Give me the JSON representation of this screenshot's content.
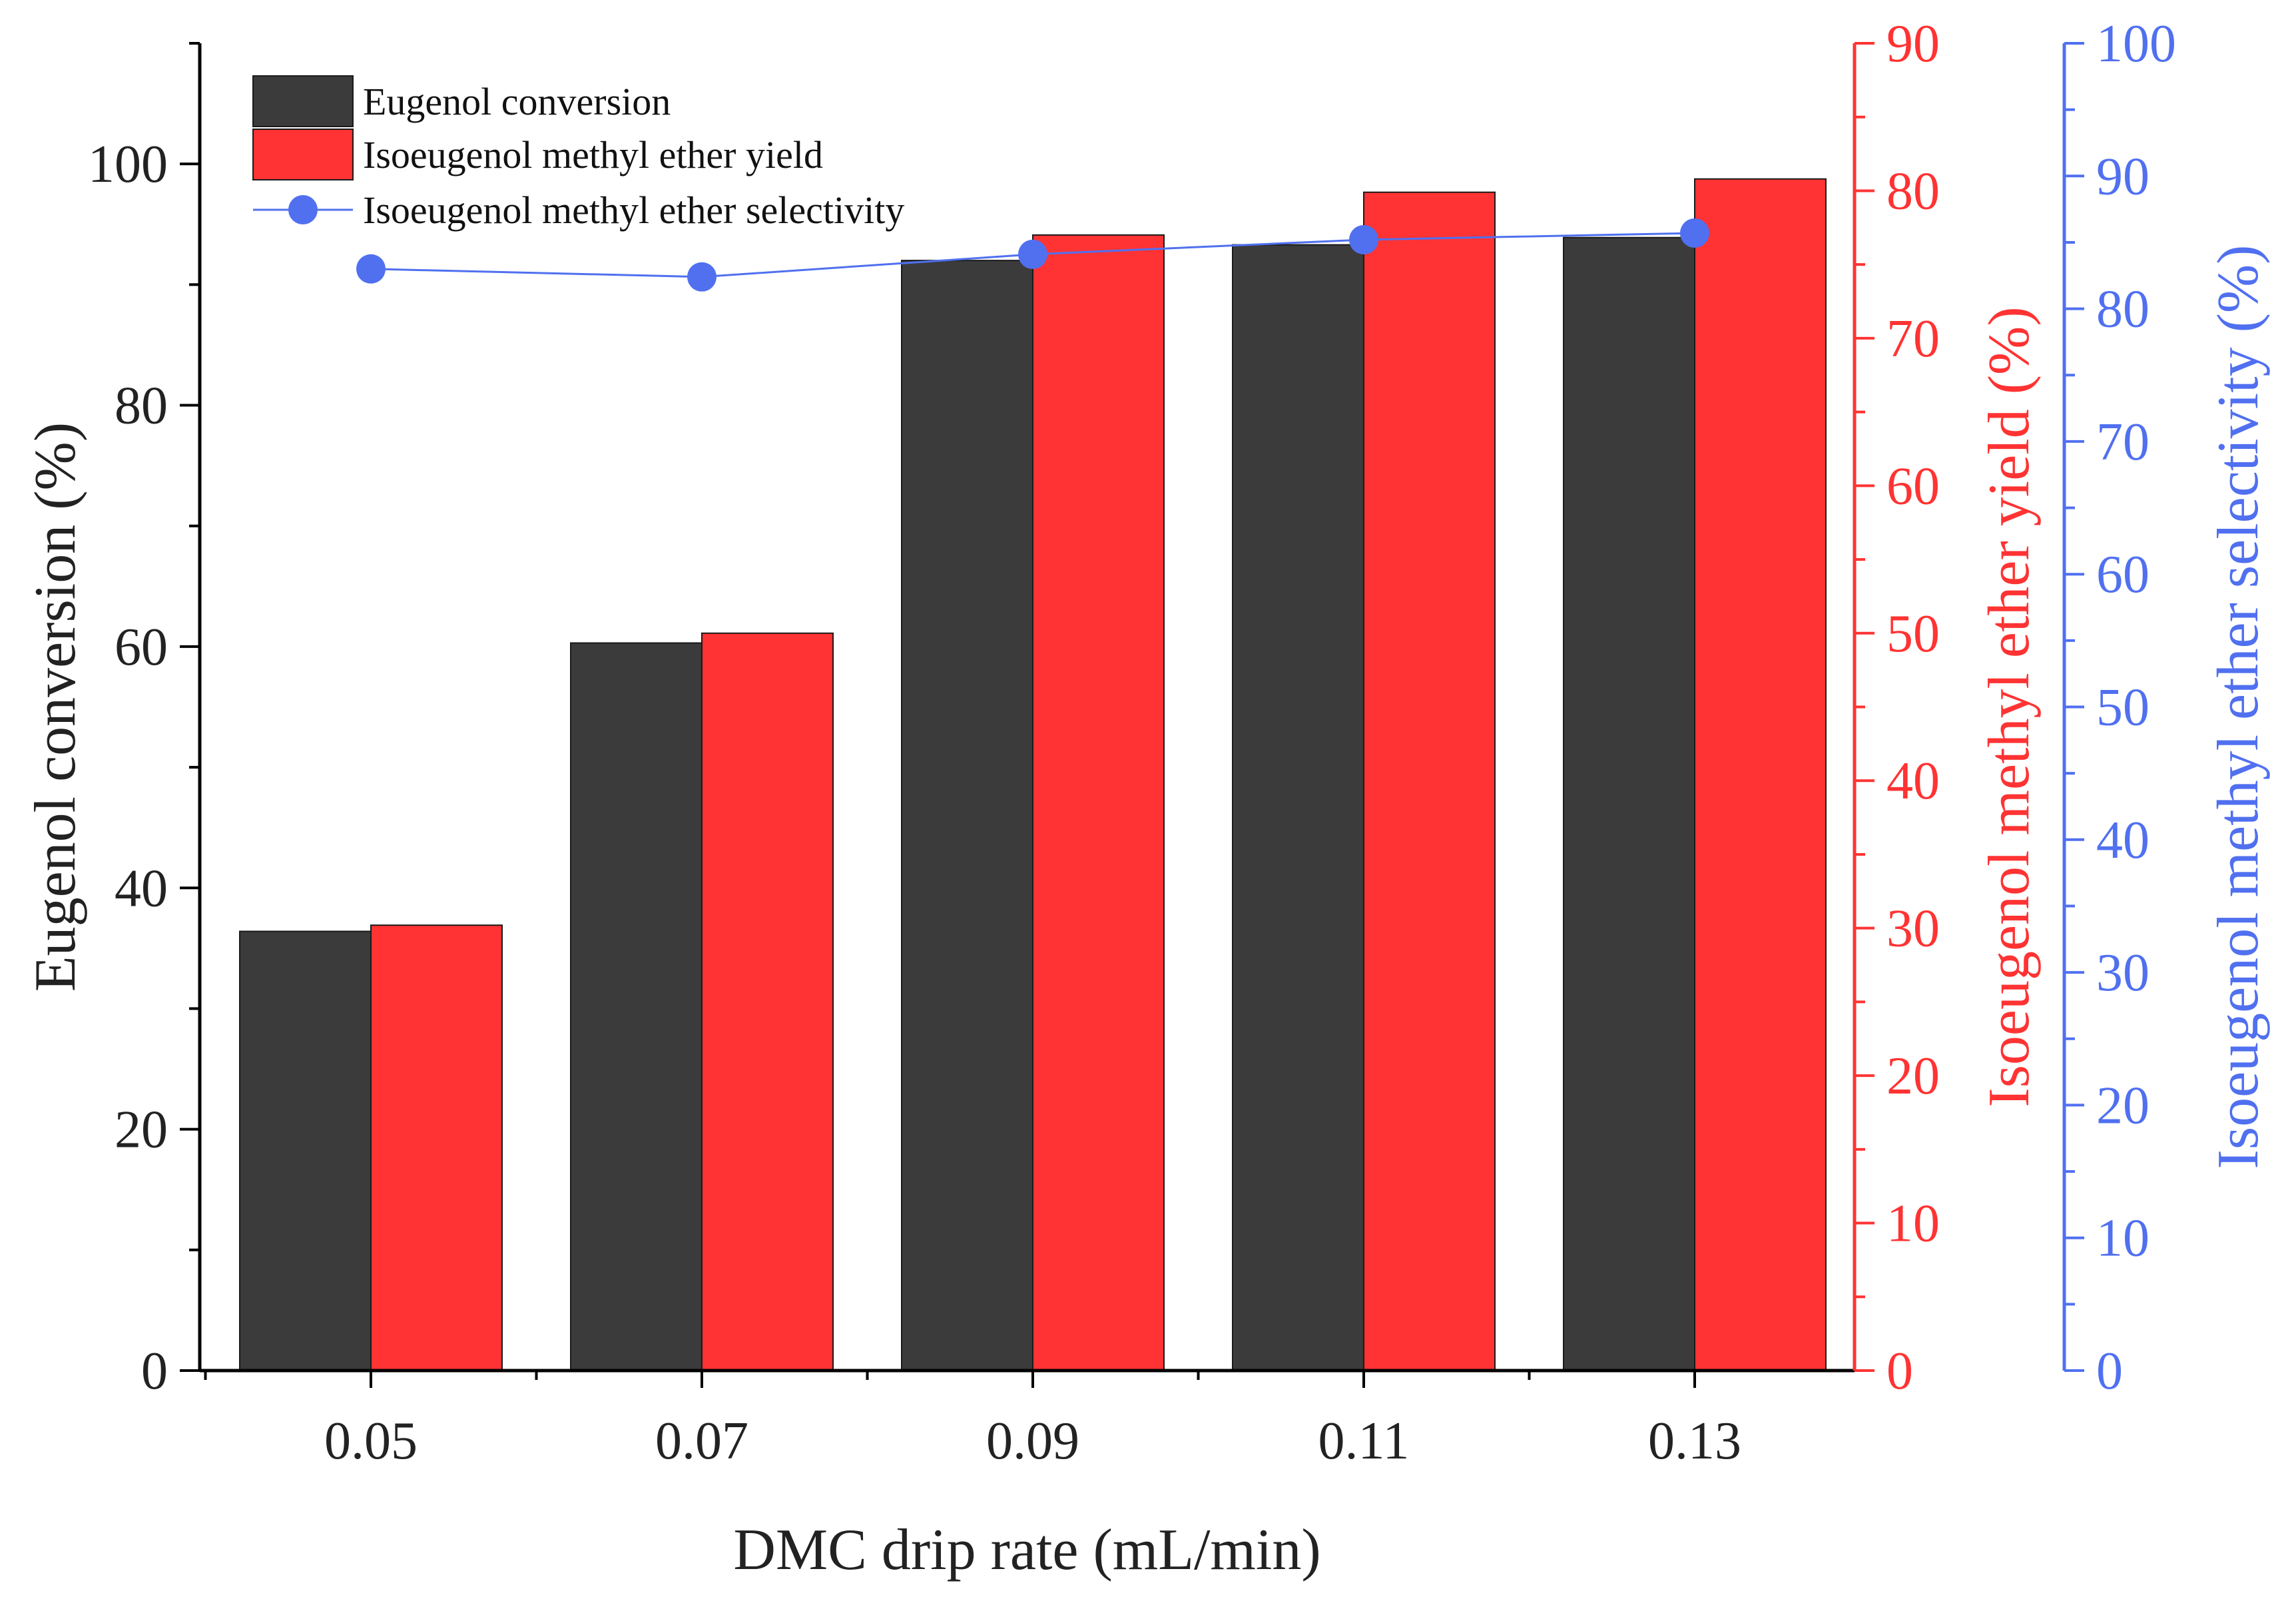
{
  "chart_data": {
    "type": "bar",
    "xlabel": "DMC drip rate (mL/min)",
    "categories": [
      "0.05",
      "0.07",
      "0.09",
      "0.11",
      "0.13"
    ],
    "series": [
      {
        "name": "Eugenol conversion",
        "kind": "bar",
        "axis": "left",
        "color": "#3b3b3b",
        "values": [
          36.4,
          60.3,
          92.0,
          93.3,
          93.9
        ]
      },
      {
        "name": "Isoeugenol methyl ether yield",
        "kind": "bar",
        "axis": "right1",
        "color": "#ff3333",
        "values": [
          30.2,
          50.0,
          77.0,
          79.9,
          80.8
        ]
      },
      {
        "name": "Isoeugenol methyl ether selectivity",
        "kind": "line",
        "axis": "right2",
        "color": "#5070f0",
        "values": [
          83.0,
          82.4,
          84.1,
          85.2,
          85.7
        ]
      }
    ],
    "axes": {
      "left": {
        "label": "Eugenol conversion (%)",
        "range": [
          0,
          110
        ],
        "ticks": [
          "0",
          "20",
          "40",
          "60",
          "80",
          "100"
        ],
        "tick_values": [
          0,
          20,
          40,
          60,
          80,
          100
        ],
        "color": "#000000"
      },
      "right1": {
        "label": "Isoeugenol methyl ether yield (%)",
        "range": [
          0,
          90
        ],
        "ticks": [
          "0",
          "10",
          "20",
          "30",
          "40",
          "50",
          "60",
          "70",
          "80",
          "90"
        ],
        "tick_values": [
          0,
          10,
          20,
          30,
          40,
          50,
          60,
          70,
          80,
          90
        ],
        "color": "#ff3333"
      },
      "right2": {
        "label": "Isoeugenol methyl ether selectivity (%)",
        "range": [
          0,
          100
        ],
        "ticks": [
          "0",
          "10",
          "20",
          "30",
          "40",
          "50",
          "60",
          "70",
          "80",
          "90",
          "100"
        ],
        "tick_values": [
          0,
          10,
          20,
          30,
          40,
          50,
          60,
          70,
          80,
          90,
          100
        ],
        "color": "#5070f0"
      }
    },
    "legend": {
      "position": "top-left",
      "entries": [
        "Eugenol conversion",
        "Isoeugenol methyl ether yield",
        "Isoeugenol methyl ether selectivity"
      ]
    }
  }
}
